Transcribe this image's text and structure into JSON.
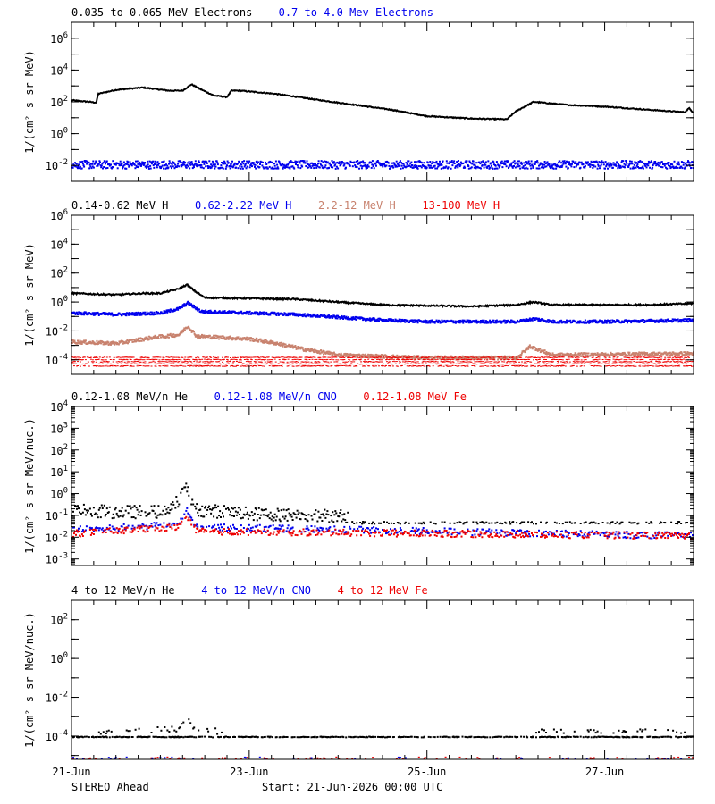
{
  "footer": {
    "spacecraft": "STEREO Ahead",
    "start": "Start: 21-Jun-2026 00:00 UTC"
  },
  "colors": {
    "black": "#000000",
    "blue": "#0000ee",
    "tan": "#c8826e",
    "red": "#ee0000"
  },
  "x_axis": {
    "range_days": [
      0,
      7.0
    ],
    "ticks": [
      {
        "day": 0,
        "label": "21-Jun"
      },
      {
        "day": 2,
        "label": "23-Jun"
      },
      {
        "day": 4,
        "label": "25-Jun"
      },
      {
        "day": 6,
        "label": "27-Jun"
      }
    ],
    "minor_step": 0.25
  },
  "chart_data": [
    {
      "type": "scatter",
      "log_y": true,
      "ylabel": "1/(cm² s sr MeV)",
      "ylim_exp": [
        -3,
        7
      ],
      "tick_labels": [
        {
          "exp": 6,
          "label": "10",
          "sup": "6"
        },
        {
          "exp": 4,
          "label": "10",
          "sup": "4"
        },
        {
          "exp": 2,
          "label": "10",
          "sup": "2"
        },
        {
          "exp": 0,
          "label": "10",
          "sup": "0"
        },
        {
          "exp": -2,
          "label": "10",
          "sup": "-2"
        }
      ],
      "legend": [
        {
          "text": "0.035 to 0.065 MeV Electrons",
          "color": "#000000"
        },
        {
          "text": "0.7 to 4.0 Mev Electrons",
          "color": "#0000ee"
        }
      ],
      "series": [
        {
          "color": "#000000",
          "style": "line",
          "noise": 0.03,
          "points": [
            [
              0,
              2.1
            ],
            [
              0.2,
              2.0
            ],
            [
              0.28,
              1.95
            ],
            [
              0.3,
              2.5
            ],
            [
              0.5,
              2.75
            ],
            [
              0.8,
              2.9
            ],
            [
              1.1,
              2.7
            ],
            [
              1.25,
              2.7
            ],
            [
              1.35,
              3.1
            ],
            [
              1.45,
              2.8
            ],
            [
              1.6,
              2.4
            ],
            [
              1.75,
              2.3
            ],
            [
              1.8,
              2.7
            ],
            [
              1.9,
              2.7
            ],
            [
              2.3,
              2.5
            ],
            [
              2.8,
              2.1
            ],
            [
              3.2,
              1.8
            ],
            [
              3.6,
              1.5
            ],
            [
              4.0,
              1.1
            ],
            [
              4.5,
              0.95
            ],
            [
              4.9,
              0.9
            ],
            [
              5.0,
              1.4
            ],
            [
              5.2,
              2.0
            ],
            [
              5.6,
              1.8
            ],
            [
              6.0,
              1.7
            ],
            [
              6.5,
              1.5
            ],
            [
              6.9,
              1.35
            ],
            [
              6.95,
              1.6
            ],
            [
              7.0,
              1.3
            ]
          ]
        },
        {
          "color": "#0000ee",
          "style": "dots",
          "noise": 0.25,
          "points": [
            [
              0,
              -1.9
            ],
            [
              7.0,
              -1.9
            ]
          ]
        }
      ]
    },
    {
      "type": "scatter",
      "log_y": true,
      "ylabel": "1/(cm² s sr MeV)",
      "ylim_exp": [
        -5,
        6
      ],
      "tick_labels": [
        {
          "exp": 6,
          "label": "10",
          "sup": "6"
        },
        {
          "exp": 4,
          "label": "10",
          "sup": "4"
        },
        {
          "exp": 2,
          "label": "10",
          "sup": "2"
        },
        {
          "exp": 0,
          "label": "10",
          "sup": "0"
        },
        {
          "exp": -2,
          "label": "10",
          "sup": "-2"
        },
        {
          "exp": -4,
          "label": "10",
          "sup": "-4"
        }
      ],
      "legend": [
        {
          "text": "0.14-0.62 MeV H",
          "color": "#000000"
        },
        {
          "text": "0.62-2.22 MeV H",
          "color": "#0000ee"
        },
        {
          "text": "2.2-12 MeV H",
          "color": "#c8826e"
        },
        {
          "text": "13-100 MeV H",
          "color": "#ee0000"
        }
      ],
      "series": [
        {
          "color": "#000000",
          "style": "line",
          "noise": 0.05,
          "points": [
            [
              0,
              0.6
            ],
            [
              0.5,
              0.5
            ],
            [
              0.8,
              0.6
            ],
            [
              1.0,
              0.6
            ],
            [
              1.2,
              0.9
            ],
            [
              1.3,
              1.2
            ],
            [
              1.4,
              0.7
            ],
            [
              1.5,
              0.3
            ],
            [
              2.0,
              0.25
            ],
            [
              2.5,
              0.2
            ],
            [
              3.0,
              0.0
            ],
            [
              3.5,
              -0.2
            ],
            [
              4.0,
              -0.25
            ],
            [
              4.5,
              -0.3
            ],
            [
              5.0,
              -0.2
            ],
            [
              5.2,
              0.0
            ],
            [
              5.4,
              -0.2
            ],
            [
              6.0,
              -0.2
            ],
            [
              6.5,
              -0.2
            ],
            [
              7.0,
              -0.1
            ]
          ]
        },
        {
          "color": "#0000ee",
          "style": "dots",
          "noise": 0.1,
          "points": [
            [
              0,
              -0.7
            ],
            [
              0.5,
              -0.8
            ],
            [
              1.0,
              -0.7
            ],
            [
              1.2,
              -0.4
            ],
            [
              1.3,
              0.0
            ],
            [
              1.45,
              -0.6
            ],
            [
              2.0,
              -0.7
            ],
            [
              2.5,
              -0.8
            ],
            [
              3.0,
              -1.0
            ],
            [
              3.5,
              -1.2
            ],
            [
              4.0,
              -1.3
            ],
            [
              5.0,
              -1.3
            ],
            [
              5.2,
              -1.1
            ],
            [
              5.4,
              -1.3
            ],
            [
              6.0,
              -1.3
            ],
            [
              7.0,
              -1.2
            ]
          ]
        },
        {
          "color": "#c8826e",
          "style": "dots",
          "noise": 0.12,
          "points": [
            [
              0,
              -2.7
            ],
            [
              0.5,
              -2.8
            ],
            [
              0.9,
              -2.4
            ],
            [
              1.2,
              -2.2
            ],
            [
              1.3,
              -1.6
            ],
            [
              1.4,
              -2.3
            ],
            [
              2.0,
              -2.5
            ],
            [
              2.3,
              -2.8
            ],
            [
              2.6,
              -3.2
            ],
            [
              3.0,
              -3.6
            ],
            [
              4.0,
              -3.8
            ],
            [
              5.0,
              -3.8
            ],
            [
              5.15,
              -3.0
            ],
            [
              5.4,
              -3.6
            ],
            [
              7.0,
              -3.5
            ]
          ]
        },
        {
          "color": "#ee0000",
          "style": "band",
          "noise": 0.25,
          "points": [
            [
              0,
              -4.0
            ],
            [
              7.0,
              -4.0
            ]
          ]
        }
      ]
    },
    {
      "type": "scatter",
      "log_y": true,
      "ylabel": "1/(cm² s sr MeV/nuc.)",
      "ylim_exp": [
        -3.3,
        4
      ],
      "tick_labels": [
        {
          "exp": 4,
          "label": "10",
          "sup": "4"
        },
        {
          "exp": 3,
          "label": "10",
          "sup": "3"
        },
        {
          "exp": 2,
          "label": "10",
          "sup": "2"
        },
        {
          "exp": 1,
          "label": "10",
          "sup": "1"
        },
        {
          "exp": 0,
          "label": "10",
          "sup": "0"
        },
        {
          "exp": -1,
          "label": "10",
          "sup": "-1"
        },
        {
          "exp": -2,
          "label": "10",
          "sup": "-2"
        },
        {
          "exp": -3,
          "label": "10",
          "sup": "-3"
        }
      ],
      "legend": [
        {
          "text": "0.12-1.08 MeV/n He",
          "color": "#000000"
        },
        {
          "text": "0.12-1.08 MeV/n CNO",
          "color": "#0000ee"
        },
        {
          "text": "0.12-1.08 MeV Fe",
          "color": "#ee0000"
        }
      ],
      "series": [
        {
          "color": "#000000",
          "style": "sparse",
          "noise": 0.3,
          "density": 0.9,
          "until": 3.1,
          "points": [
            [
              0,
              -0.7
            ],
            [
              0.5,
              -0.8
            ],
            [
              1.0,
              -0.8
            ],
            [
              1.2,
              -0.3
            ],
            [
              1.28,
              0.4
            ],
            [
              1.4,
              -0.7
            ],
            [
              2.0,
              -0.9
            ],
            [
              3.1,
              -1.0
            ]
          ]
        },
        {
          "color": "#000000",
          "style": "sparse",
          "noise": 0.05,
          "density": 0.35,
          "from": 3.1,
          "points": [
            [
              3.1,
              -1.3
            ],
            [
              7.0,
              -1.3
            ]
          ]
        },
        {
          "color": "#0000ee",
          "style": "sparse",
          "noise": 0.15,
          "density": 0.6,
          "points": [
            [
              0,
              -1.6
            ],
            [
              1.2,
              -1.4
            ],
            [
              1.28,
              -0.7
            ],
            [
              1.4,
              -1.5
            ],
            [
              7.0,
              -1.9
            ]
          ]
        },
        {
          "color": "#ee0000",
          "style": "sparse",
          "noise": 0.15,
          "density": 0.7,
          "points": [
            [
              0,
              -1.8
            ],
            [
              1.2,
              -1.5
            ],
            [
              1.28,
              -0.9
            ],
            [
              1.4,
              -1.7
            ],
            [
              7.0,
              -1.9
            ]
          ]
        }
      ]
    },
    {
      "type": "scatter",
      "log_y": true,
      "ylabel": "1/(cm² s sr MeV/nuc.)",
      "ylim_exp": [
        -5.2,
        3
      ],
      "tick_labels": [
        {
          "exp": 2,
          "label": "10",
          "sup": "2"
        },
        {
          "exp": 0,
          "label": "10",
          "sup": "0"
        },
        {
          "exp": -2,
          "label": "10",
          "sup": "-2"
        },
        {
          "exp": -4,
          "label": "10",
          "sup": "-4"
        }
      ],
      "legend": [
        {
          "text": "4 to 12 MeV/n He",
          "color": "#000000"
        },
        {
          "text": "4 to 12 MeV/n CNO",
          "color": "#0000ee"
        },
        {
          "text": "4 to 12 MeV Fe",
          "color": "#ee0000"
        }
      ],
      "series": [
        {
          "color": "#000000",
          "style": "sparse",
          "noise": 0.02,
          "density": 0.6,
          "points": [
            [
              0,
              -4.0
            ],
            [
              7.0,
              -4.0
            ]
          ]
        },
        {
          "color": "#000000",
          "style": "sparse",
          "noise": 0.15,
          "density": 0.25,
          "points": [
            [
              0.3,
              -3.7
            ],
            [
              1.2,
              -3.6
            ],
            [
              1.28,
              -2.9
            ],
            [
              1.4,
              -3.7
            ],
            [
              1.8,
              -3.7
            ]
          ]
        },
        {
          "color": "#000000",
          "style": "sparse",
          "noise": 0.1,
          "density": 0.25,
          "points": [
            [
              5.2,
              -3.7
            ],
            [
              6.9,
              -3.7
            ]
          ]
        },
        {
          "color": "#ee0000",
          "style": "sparse",
          "noise": 0.05,
          "density": 0.1,
          "points": [
            [
              0,
              -5.1
            ],
            [
              7.0,
              -5.1
            ]
          ]
        },
        {
          "color": "#0000ee",
          "style": "sparse",
          "noise": 0.05,
          "density": 0.05,
          "points": [
            [
              0,
              -5.1
            ],
            [
              7.0,
              -5.1
            ]
          ]
        }
      ]
    }
  ]
}
